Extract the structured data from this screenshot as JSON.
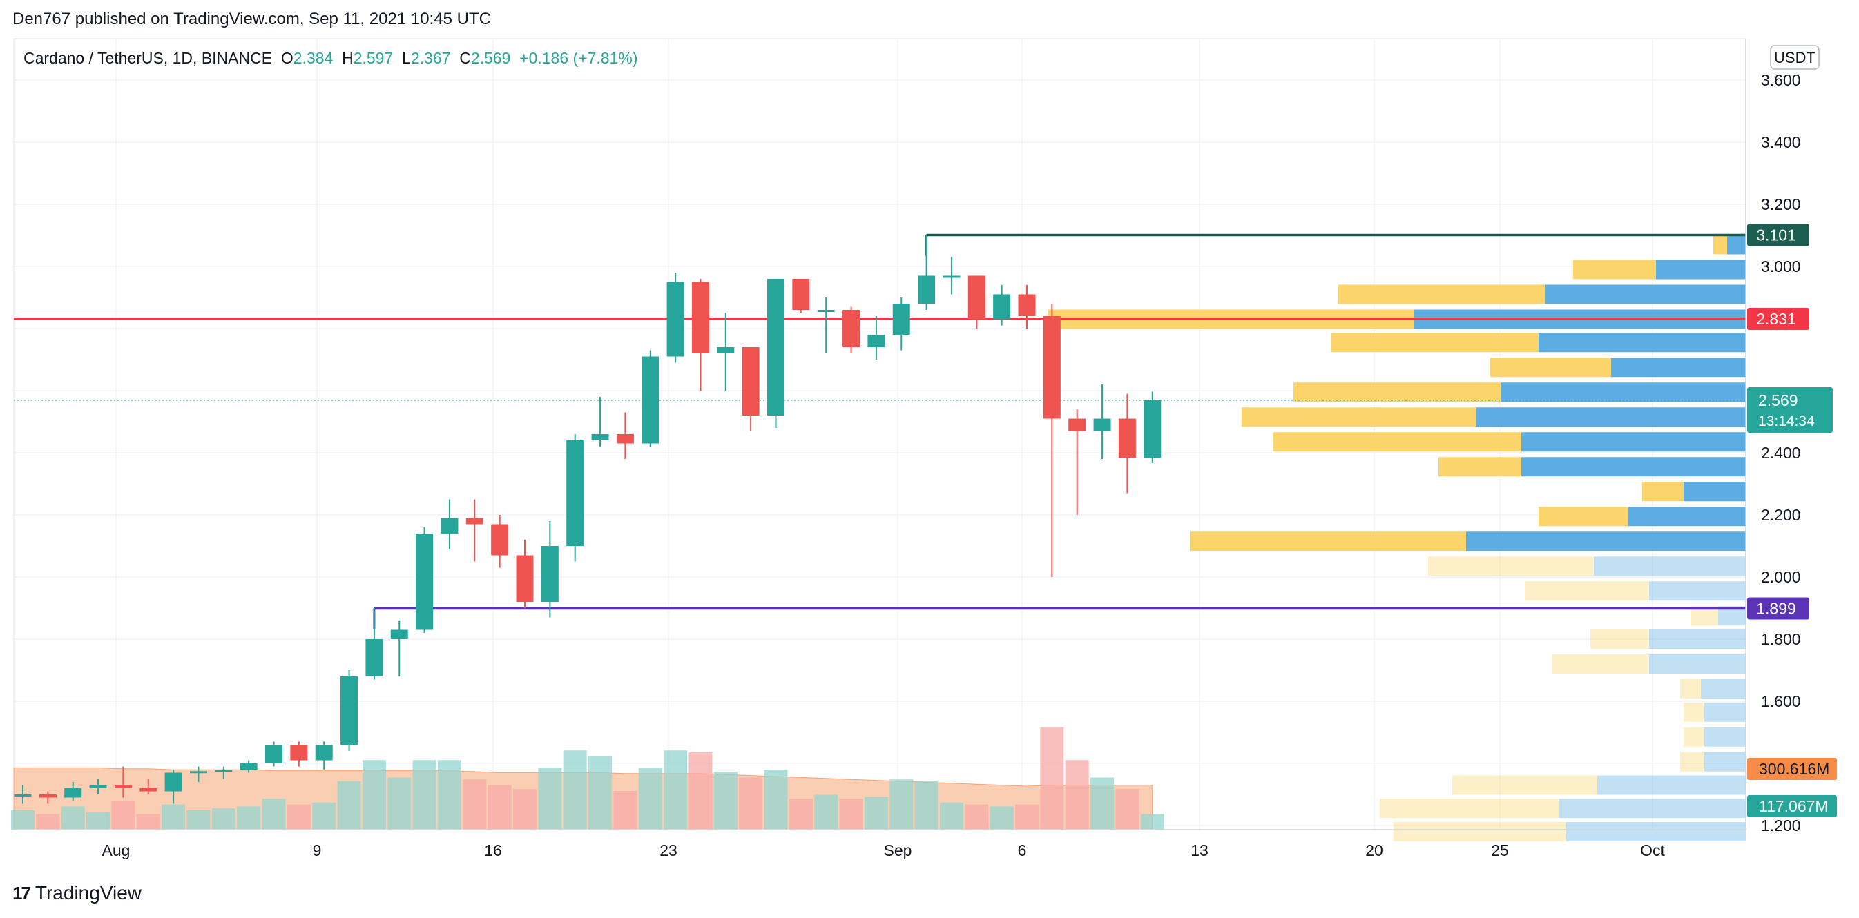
{
  "header": {
    "published": "Den767 published on TradingView.com, Sep 11, 2021 10:45 UTC"
  },
  "legend": {
    "symbol": "Cardano / TetherUS, 1D, BINANCE",
    "o_label": "O",
    "o": "2.384",
    "h_label": "H",
    "h": "2.597",
    "l_label": "L",
    "l": "2.367",
    "c_label": "C",
    "c": "2.569",
    "change": "+0.186 (+7.81%)"
  },
  "currency_badge": "USDT",
  "brand": "TradingView",
  "colors": {
    "up": "#26a69a",
    "down": "#ef5350",
    "up_volume": "#94d4cf",
    "down_volume": "#f7a9a7",
    "resistance": "#f23645",
    "support": "#5b34b5",
    "top_line": "#1b5e4f",
    "vp_blue": "#5dade2",
    "vp_yellow": "#fbd56b",
    "vol_ma_fill": "#f9c6a6"
  },
  "chart_data": {
    "type": "candlestick",
    "y_axis": {
      "ylim": [
        1.16,
        3.66
      ],
      "ticks": [
        "1.200",
        "1.600",
        "1.800",
        "2.000",
        "2.200",
        "2.400",
        "3.000",
        "3.200",
        "3.400",
        "3.600"
      ]
    },
    "x_axis": {
      "ticks": [
        "Aug",
        "9",
        "16",
        "23",
        "Sep",
        "6",
        "13",
        "20",
        "25",
        "Oct"
      ]
    },
    "candles": [
      {
        "o": 1.3,
        "h": 1.33,
        "l": 1.27,
        "c": 1.3
      },
      {
        "o": 1.3,
        "h": 1.31,
        "l": 1.27,
        "c": 1.29
      },
      {
        "o": 1.29,
        "h": 1.34,
        "l": 1.28,
        "c": 1.32
      },
      {
        "o": 1.32,
        "h": 1.35,
        "l": 1.3,
        "c": 1.33
      },
      {
        "o": 1.33,
        "h": 1.39,
        "l": 1.29,
        "c": 1.32
      },
      {
        "o": 1.32,
        "h": 1.35,
        "l": 1.3,
        "c": 1.31
      },
      {
        "o": 1.31,
        "h": 1.38,
        "l": 1.27,
        "c": 1.37
      },
      {
        "o": 1.37,
        "h": 1.39,
        "l": 1.34,
        "c": 1.375
      },
      {
        "o": 1.375,
        "h": 1.39,
        "l": 1.35,
        "c": 1.38
      },
      {
        "o": 1.38,
        "h": 1.41,
        "l": 1.37,
        "c": 1.4
      },
      {
        "o": 1.4,
        "h": 1.47,
        "l": 1.39,
        "c": 1.46
      },
      {
        "o": 1.46,
        "h": 1.47,
        "l": 1.39,
        "c": 1.41
      },
      {
        "o": 1.41,
        "h": 1.47,
        "l": 1.38,
        "c": 1.46
      },
      {
        "o": 1.46,
        "h": 1.7,
        "l": 1.44,
        "c": 1.68
      },
      {
        "o": 1.68,
        "h": 1.9,
        "l": 1.67,
        "c": 1.8
      },
      {
        "o": 1.8,
        "h": 1.86,
        "l": 1.68,
        "c": 1.83
      },
      {
        "o": 1.83,
        "h": 2.16,
        "l": 1.82,
        "c": 2.14
      },
      {
        "o": 2.14,
        "h": 2.25,
        "l": 2.09,
        "c": 2.19
      },
      {
        "o": 2.19,
        "h": 2.25,
        "l": 2.05,
        "c": 2.17
      },
      {
        "o": 2.17,
        "h": 2.2,
        "l": 2.03,
        "c": 2.07
      },
      {
        "o": 2.07,
        "h": 2.12,
        "l": 1.9,
        "c": 1.92
      },
      {
        "o": 1.92,
        "h": 2.18,
        "l": 1.87,
        "c": 2.1
      },
      {
        "o": 2.1,
        "h": 2.46,
        "l": 2.05,
        "c": 2.44
      },
      {
        "o": 2.44,
        "h": 2.58,
        "l": 2.42,
        "c": 2.46
      },
      {
        "o": 2.46,
        "h": 2.53,
        "l": 2.38,
        "c": 2.43
      },
      {
        "o": 2.43,
        "h": 2.73,
        "l": 2.42,
        "c": 2.71
      },
      {
        "o": 2.71,
        "h": 2.98,
        "l": 2.69,
        "c": 2.95
      },
      {
        "o": 2.95,
        "h": 2.96,
        "l": 2.6,
        "c": 2.72
      },
      {
        "o": 2.72,
        "h": 2.85,
        "l": 2.6,
        "c": 2.74
      },
      {
        "o": 2.74,
        "h": 2.74,
        "l": 2.47,
        "c": 2.52
      },
      {
        "o": 2.52,
        "h": 2.96,
        "l": 2.48,
        "c": 2.96
      },
      {
        "o": 2.96,
        "h": 2.96,
        "l": 2.85,
        "c": 2.86
      },
      {
        "o": 2.86,
        "h": 2.9,
        "l": 2.72,
        "c": 2.86
      },
      {
        "o": 2.86,
        "h": 2.87,
        "l": 2.72,
        "c": 2.74
      },
      {
        "o": 2.74,
        "h": 2.84,
        "l": 2.7,
        "c": 2.78
      },
      {
        "o": 2.78,
        "h": 2.9,
        "l": 2.73,
        "c": 2.88
      },
      {
        "o": 2.88,
        "h": 3.101,
        "l": 2.86,
        "c": 2.97
      },
      {
        "o": 2.97,
        "h": 3.03,
        "l": 2.91,
        "c": 2.97
      },
      {
        "o": 2.97,
        "h": 2.97,
        "l": 2.8,
        "c": 2.83
      },
      {
        "o": 2.83,
        "h": 2.94,
        "l": 2.81,
        "c": 2.91
      },
      {
        "o": 2.91,
        "h": 2.94,
        "l": 2.8,
        "c": 2.84
      },
      {
        "o": 2.84,
        "h": 2.88,
        "l": 2.0,
        "c": 2.51
      },
      {
        "o": 2.51,
        "h": 2.54,
        "l": 2.2,
        "c": 2.47
      },
      {
        "o": 2.47,
        "h": 2.62,
        "l": 2.38,
        "c": 2.51
      },
      {
        "o": 2.51,
        "h": 2.59,
        "l": 2.27,
        "c": 2.384
      },
      {
        "o": 2.384,
        "h": 2.597,
        "l": 2.367,
        "c": 2.569
      }
    ],
    "volume": [
      {
        "v": 1.0,
        "up": true
      },
      {
        "v": 0.8,
        "up": false
      },
      {
        "v": 1.2,
        "up": true
      },
      {
        "v": 0.9,
        "up": true
      },
      {
        "v": 1.5,
        "up": false
      },
      {
        "v": 0.8,
        "up": false
      },
      {
        "v": 1.3,
        "up": true
      },
      {
        "v": 1.0,
        "up": true
      },
      {
        "v": 1.1,
        "up": true
      },
      {
        "v": 1.2,
        "up": true
      },
      {
        "v": 1.6,
        "up": true
      },
      {
        "v": 1.3,
        "up": false
      },
      {
        "v": 1.4,
        "up": true
      },
      {
        "v": 2.5,
        "up": true
      },
      {
        "v": 3.6,
        "up": true
      },
      {
        "v": 2.7,
        "up": true
      },
      {
        "v": 3.6,
        "up": true
      },
      {
        "v": 3.6,
        "up": true
      },
      {
        "v": 2.6,
        "up": false
      },
      {
        "v": 2.3,
        "up": false
      },
      {
        "v": 2.1,
        "up": false
      },
      {
        "v": 3.2,
        "up": true
      },
      {
        "v": 4.1,
        "up": true
      },
      {
        "v": 3.8,
        "up": true
      },
      {
        "v": 2.0,
        "up": false
      },
      {
        "v": 3.2,
        "up": true
      },
      {
        "v": 4.1,
        "up": true
      },
      {
        "v": 4.0,
        "up": false
      },
      {
        "v": 3.0,
        "up": true
      },
      {
        "v": 2.7,
        "up": false
      },
      {
        "v": 3.1,
        "up": true
      },
      {
        "v": 1.6,
        "up": false
      },
      {
        "v": 1.8,
        "up": true
      },
      {
        "v": 1.6,
        "up": false
      },
      {
        "v": 1.7,
        "up": true
      },
      {
        "v": 2.6,
        "up": true
      },
      {
        "v": 2.5,
        "up": true
      },
      {
        "v": 1.4,
        "up": true
      },
      {
        "v": 1.3,
        "up": false
      },
      {
        "v": 1.2,
        "up": true
      },
      {
        "v": 1.3,
        "up": false
      },
      {
        "v": 5.3,
        "up": false
      },
      {
        "v": 3.6,
        "up": false
      },
      {
        "v": 2.7,
        "up": true
      },
      {
        "v": 2.1,
        "up": false
      },
      {
        "v": 0.8,
        "up": true
      }
    ],
    "volume_ma": [
      3.2,
      3.2,
      3.2,
      3.2,
      3.15,
      3.15,
      3.1,
      3.1,
      3.1,
      3.1,
      3.05,
      3.05,
      3.05,
      3.05,
      3.05,
      3.05,
      3.05,
      3.05,
      3.0,
      2.95,
      2.95,
      2.95,
      2.95,
      2.95,
      2.9,
      2.9,
      2.9,
      2.9,
      2.85,
      2.8,
      2.75,
      2.7,
      2.65,
      2.6,
      2.55,
      2.5,
      2.45,
      2.4,
      2.35,
      2.3,
      2.25,
      2.3,
      2.3,
      2.3,
      2.3,
      2.3
    ],
    "volume_profile": [
      {
        "price": 3.07,
        "blue": 0.027,
        "yellow": 0.02,
        "strong": true
      },
      {
        "price": 2.99,
        "blue": 0.13,
        "yellow": 0.12,
        "strong": true
      },
      {
        "price": 2.91,
        "blue": 0.29,
        "yellow": 0.3,
        "strong": true
      },
      {
        "price": 2.83,
        "blue": 0.48,
        "yellow": 0.53,
        "strong": true
      },
      {
        "price": 2.755,
        "blue": 0.3,
        "yellow": 0.3,
        "strong": true
      },
      {
        "price": 2.675,
        "blue": 0.195,
        "yellow": 0.175,
        "strong": true
      },
      {
        "price": 2.595,
        "blue": 0.355,
        "yellow": 0.3,
        "strong": true
      },
      {
        "price": 2.515,
        "blue": 0.39,
        "yellow": 0.34,
        "strong": true
      },
      {
        "price": 2.435,
        "blue": 0.325,
        "yellow": 0.36,
        "strong": true
      },
      {
        "price": 2.355,
        "blue": 0.325,
        "yellow": 0.12,
        "strong": true
      },
      {
        "price": 2.275,
        "blue": 0.09,
        "yellow": 0.06,
        "strong": true
      },
      {
        "price": 2.195,
        "blue": 0.17,
        "yellow": 0.13,
        "strong": true
      },
      {
        "price": 2.115,
        "blue": 0.405,
        "yellow": 0.4,
        "strong": true
      },
      {
        "price": 2.035,
        "blue": 0.22,
        "yellow": 0.24,
        "strong": false
      },
      {
        "price": 1.955,
        "blue": 0.14,
        "yellow": 0.18,
        "strong": false
      },
      {
        "price": 1.875,
        "blue": 0.04,
        "yellow": 0.04,
        "strong": false
      },
      {
        "price": 1.8,
        "blue": 0.14,
        "yellow": 0.085,
        "strong": false
      },
      {
        "price": 1.72,
        "blue": 0.14,
        "yellow": 0.14,
        "strong": false
      },
      {
        "price": 1.64,
        "blue": 0.065,
        "yellow": 0.03,
        "strong": false
      },
      {
        "price": 1.565,
        "blue": 0.06,
        "yellow": 0.03,
        "strong": false
      },
      {
        "price": 1.485,
        "blue": 0.06,
        "yellow": 0.03,
        "strong": false
      },
      {
        "price": 1.405,
        "blue": 0.06,
        "yellow": 0.035,
        "strong": false
      },
      {
        "price": 1.33,
        "blue": 0.215,
        "yellow": 0.21,
        "strong": false
      },
      {
        "price": 1.255,
        "blue": 0.27,
        "yellow": 0.26,
        "strong": false
      },
      {
        "price": 1.18,
        "blue": 0.26,
        "yellow": 0.25,
        "strong": false
      }
    ],
    "levels": [
      {
        "name": "top",
        "price": 3.101,
        "label": "3.101",
        "start_index": 36
      },
      {
        "name": "resistance",
        "price": 2.831,
        "label": "2.831",
        "start_index": -1
      },
      {
        "name": "support",
        "price": 1.899,
        "label": "1.899",
        "start_index": 14
      }
    ],
    "last_price": {
      "price": 2.569,
      "label": "2.569",
      "countdown": "13:14:34"
    },
    "volume_labels": {
      "ma": "300.616M",
      "volume": "117.067M"
    }
  }
}
